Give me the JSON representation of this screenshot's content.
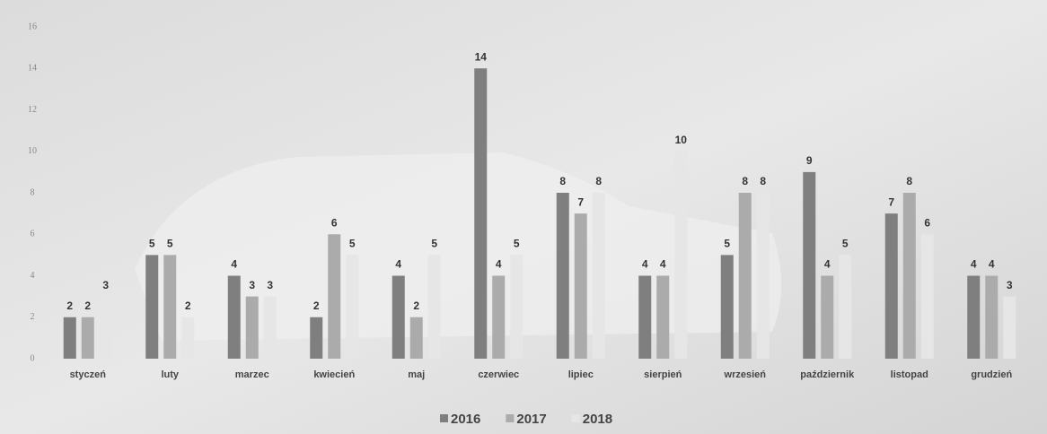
{
  "chart_data": {
    "type": "bar",
    "categories": [
      "styczeń",
      "luty",
      "marzec",
      "kwiecień",
      "maj",
      "czerwiec",
      "lipiec",
      "sierpień",
      "wrzesień",
      "październik",
      "listopad",
      "grudzień"
    ],
    "series": [
      {
        "name": "2016",
        "color": "#7f7f7f",
        "values": [
          2,
          5,
          4,
          2,
          4,
          14,
          8,
          4,
          5,
          9,
          7,
          4
        ]
      },
      {
        "name": "2017",
        "color": "#ababab",
        "values": [
          2,
          5,
          3,
          6,
          2,
          4,
          7,
          4,
          8,
          4,
          8,
          4
        ]
      },
      {
        "name": "2018",
        "color": "#e6e6e6",
        "values": [
          3,
          2,
          3,
          5,
          5,
          5,
          8,
          10,
          8,
          5,
          6,
          3
        ]
      }
    ],
    "ylim": [
      0,
      16
    ],
    "yticks": [
      0,
      2,
      4,
      6,
      8,
      10,
      12,
      14,
      16
    ],
    "grid": false
  }
}
